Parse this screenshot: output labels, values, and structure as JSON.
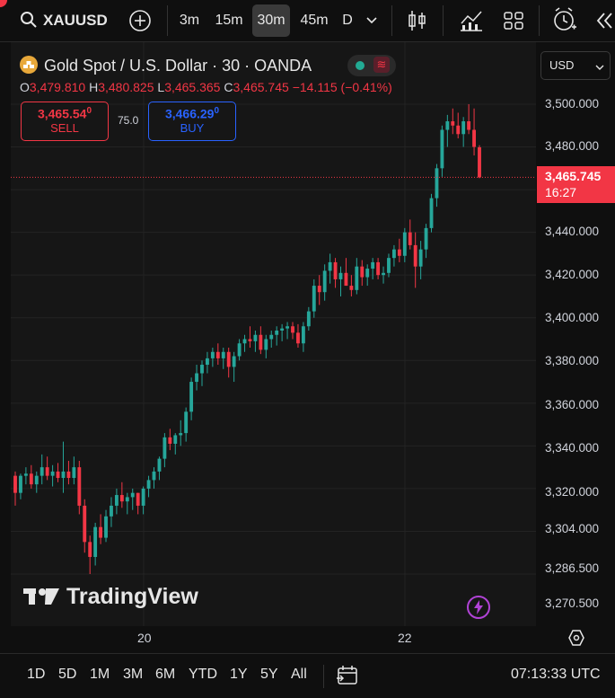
{
  "toolbar": {
    "symbol": "XAUUSD",
    "intervals": [
      "3m",
      "15m",
      "30m",
      "45m",
      "D"
    ],
    "active_interval": "30m"
  },
  "legend": {
    "title": "Gold Spot / U.S. Dollar · 30 · OANDA",
    "o_label": "O",
    "o_value": "3,479.810",
    "h_label": "H",
    "h_value": "3,480.825",
    "l_label": "L",
    "l_value": "3,465.365",
    "c_label": "C",
    "c_value": "3,465.745",
    "change": "−14.115 (−0.41%)"
  },
  "trade": {
    "sell_price": "3,465.54",
    "sell_price_sup": "0",
    "sell_label": "SELL",
    "spread": "75.0",
    "buy_price": "3,466.29",
    "buy_price_sup": "0",
    "buy_label": "BUY"
  },
  "currency": "USD",
  "price_axis": {
    "labels": [
      "3,500.000",
      "3,480.000",
      "3,440.000",
      "3,420.000",
      "3,400.000",
      "3,380.000",
      "3,360.000",
      "3,340.000",
      "3,320.000",
      "3,304.000",
      "3,286.500",
      "3,270.500"
    ],
    "current_price": "3,465.745",
    "countdown": "16:27"
  },
  "time_axis": {
    "labels": [
      "20",
      "22"
    ]
  },
  "watermark": "TradingView",
  "bottom": {
    "ranges": [
      "1D",
      "5D",
      "1M",
      "3M",
      "6M",
      "YTD",
      "1Y",
      "5Y",
      "All"
    ],
    "clock": "07:13:33 UTC"
  },
  "colors": {
    "up": "#26a69a",
    "down": "#f23645",
    "background": "#161616"
  },
  "chart_data": {
    "type": "candlestick",
    "ohlc": [
      [
        3326,
        3328,
        3312,
        3318
      ],
      [
        3318,
        3327,
        3315,
        3326
      ],
      [
        3326,
        3330,
        3322,
        3327
      ],
      [
        3327,
        3331,
        3320,
        3322
      ],
      [
        3322,
        3328,
        3318,
        3326
      ],
      [
        3326,
        3336,
        3322,
        3330
      ],
      [
        3330,
        3335,
        3324,
        3326
      ],
      [
        3326,
        3331,
        3321,
        3328
      ],
      [
        3328,
        3332,
        3323,
        3325
      ],
      [
        3325,
        3342,
        3318,
        3328
      ],
      [
        3328,
        3333,
        3322,
        3325
      ],
      [
        3325,
        3335,
        3322,
        3330
      ],
      [
        3330,
        3333,
        3308,
        3312
      ],
      [
        3312,
        3315,
        3290,
        3295
      ],
      [
        3295,
        3298,
        3280,
        3288
      ],
      [
        3288,
        3304,
        3284,
        3302
      ],
      [
        3302,
        3308,
        3294,
        3297
      ],
      [
        3297,
        3310,
        3295,
        3307
      ],
      [
        3307,
        3316,
        3302,
        3312
      ],
      [
        3312,
        3320,
        3308,
        3317
      ],
      [
        3317,
        3323,
        3311,
        3314
      ],
      [
        3314,
        3318,
        3308,
        3316
      ],
      [
        3316,
        3320,
        3310,
        3318
      ],
      [
        3318,
        3318,
        3308,
        3312
      ],
      [
        3312,
        3321,
        3308,
        3320
      ],
      [
        3320,
        3326,
        3316,
        3324
      ],
      [
        3324,
        3330,
        3320,
        3328
      ],
      [
        3328,
        3335,
        3324,
        3334
      ],
      [
        3334,
        3346,
        3330,
        3344
      ],
      [
        3344,
        3348,
        3338,
        3341
      ],
      [
        3341,
        3346,
        3336,
        3345
      ],
      [
        3345,
        3352,
        3340,
        3346
      ],
      [
        3346,
        3358,
        3342,
        3356
      ],
      [
        3356,
        3372,
        3352,
        3370
      ],
      [
        3370,
        3378,
        3366,
        3374
      ],
      [
        3374,
        3380,
        3368,
        3378
      ],
      [
        3378,
        3384,
        3374,
        3381
      ],
      [
        3381,
        3386,
        3377,
        3384
      ],
      [
        3384,
        3388,
        3378,
        3381
      ],
      [
        3381,
        3386,
        3376,
        3384
      ],
      [
        3384,
        3386,
        3372,
        3377
      ],
      [
        3377,
        3384,
        3370,
        3382
      ],
      [
        3382,
        3390,
        3380,
        3388
      ],
      [
        3388,
        3392,
        3384,
        3390
      ],
      [
        3390,
        3396,
        3386,
        3389
      ],
      [
        3389,
        3394,
        3384,
        3392
      ],
      [
        3392,
        3396,
        3383,
        3385
      ],
      [
        3385,
        3392,
        3381,
        3390
      ],
      [
        3390,
        3394,
        3386,
        3392
      ],
      [
        3392,
        3396,
        3387,
        3394
      ],
      [
        3394,
        3397,
        3389,
        3395
      ],
      [
        3395,
        3398,
        3390,
        3396
      ],
      [
        3396,
        3398,
        3390,
        3393
      ],
      [
        3393,
        3397,
        3386,
        3388
      ],
      [
        3388,
        3398,
        3384,
        3396
      ],
      [
        3396,
        3405,
        3394,
        3403
      ],
      [
        3403,
        3418,
        3400,
        3415
      ],
      [
        3415,
        3420,
        3406,
        3412
      ],
      [
        3412,
        3425,
        3408,
        3422
      ],
      [
        3422,
        3430,
        3416,
        3426
      ],
      [
        3426,
        3428,
        3414,
        3418
      ],
      [
        3418,
        3424,
        3410,
        3421
      ],
      [
        3421,
        3428,
        3415,
        3415
      ],
      [
        3415,
        3420,
        3410,
        3413
      ],
      [
        3413,
        3428,
        3411,
        3424
      ],
      [
        3424,
        3427,
        3415,
        3419
      ],
      [
        3419,
        3425,
        3415,
        3423
      ],
      [
        3423,
        3428,
        3418,
        3426
      ],
      [
        3426,
        3428,
        3418,
        3420
      ],
      [
        3420,
        3424,
        3416,
        3421
      ],
      [
        3421,
        3430,
        3419,
        3428
      ],
      [
        3428,
        3434,
        3424,
        3432
      ],
      [
        3432,
        3437,
        3426,
        3429
      ],
      [
        3429,
        3442,
        3426,
        3440
      ],
      [
        3440,
        3446,
        3432,
        3434
      ],
      [
        3434,
        3440,
        3414,
        3424
      ],
      [
        3424,
        3436,
        3418,
        3432
      ],
      [
        3432,
        3444,
        3428,
        3442
      ],
      [
        3442,
        3458,
        3440,
        3456
      ],
      [
        3456,
        3472,
        3452,
        3470
      ],
      [
        3470,
        3490,
        3466,
        3488
      ],
      [
        3488,
        3495,
        3480,
        3492
      ],
      [
        3492,
        3498,
        3486,
        3490
      ],
      [
        3490,
        3496,
        3484,
        3486
      ],
      [
        3486,
        3494,
        3480,
        3492
      ],
      [
        3492,
        3500,
        3486,
        3488
      ],
      [
        3488,
        3498,
        3476,
        3480
      ],
      [
        3479.81,
        3480.825,
        3465.365,
        3465.745
      ]
    ]
  }
}
